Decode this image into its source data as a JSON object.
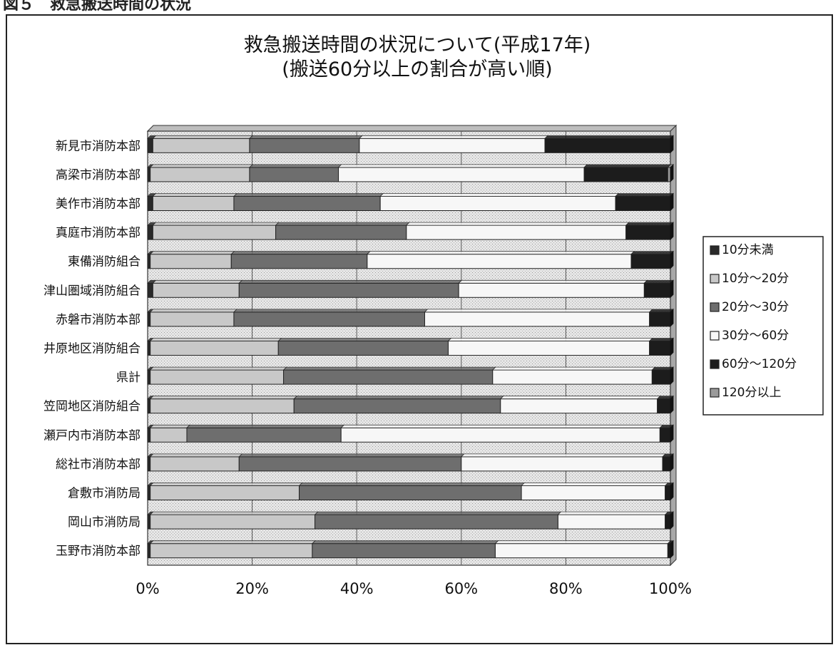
{
  "header_text": "図５　救急搬送時間の状況",
  "chart_data": {
    "type": "bar",
    "orientation": "horizontal",
    "stacked": "percent",
    "title": "救急搬送時間の状況について(平成17年)",
    "subtitle": "(搬送60分以上の割合が高い順)",
    "categories": [
      "新見市消防本部",
      "高梁市消防本部",
      "美作市消防本部",
      "真庭市消防本部",
      "東備消防組合",
      "津山圏域消防組合",
      "赤磐市消防本部",
      "井原地区消防組合",
      "県計",
      "笠岡地区消防組合",
      "瀬戸内市消防本部",
      "総社市消防本部",
      "倉敷市消防局",
      "岡山市消防局",
      "玉野市消防本部"
    ],
    "series": [
      {
        "name": "10分未満",
        "color": "#2a2a2a",
        "values": [
          1.0,
          0.5,
          1.0,
          1.0,
          0.5,
          1.0,
          0.5,
          0.5,
          0.5,
          0.5,
          0.5,
          0.5,
          0.5,
          0.5,
          0.5
        ]
      },
      {
        "name": "10分～20分",
        "color": "#c8c8c8",
        "values": [
          18.5,
          19.0,
          15.5,
          23.5,
          15.5,
          16.5,
          16.0,
          24.5,
          25.5,
          27.5,
          7.0,
          17.0,
          28.5,
          31.5,
          31.0
        ]
      },
      {
        "name": "20分～30分",
        "color": "#6e6e6e",
        "values": [
          21.0,
          17.0,
          28.0,
          25.0,
          26.0,
          42.0,
          36.5,
          32.5,
          40.0,
          39.5,
          29.5,
          42.5,
          42.5,
          46.5,
          35.0
        ]
      },
      {
        "name": "30分～60分",
        "color": "#f7f7f7",
        "values": [
          35.5,
          47.0,
          45.0,
          42.0,
          50.5,
          35.5,
          43.0,
          38.5,
          30.5,
          30.0,
          61.0,
          38.5,
          27.5,
          20.5,
          33.0
        ]
      },
      {
        "name": "60分～120分",
        "color": "#1c1c1c",
        "values": [
          24.0,
          16.0,
          10.5,
          8.5,
          7.5,
          5.0,
          4.0,
          4.0,
          3.5,
          2.5,
          2.0,
          1.5,
          1.0,
          1.0,
          0.5
        ]
      },
      {
        "name": "120分以上",
        "color": "#9a9a9a",
        "values": [
          0.0,
          0.5,
          0.0,
          0.0,
          0.0,
          0.0,
          0.0,
          0.0,
          0.0,
          0.0,
          0.0,
          0.0,
          0.0,
          0.0,
          0.0
        ]
      }
    ],
    "x_ticks": [
      "0%",
      "20%",
      "40%",
      "60%",
      "80%",
      "100%"
    ],
    "xlim": [
      0,
      100
    ],
    "grid": true,
    "legend_position": "right"
  }
}
